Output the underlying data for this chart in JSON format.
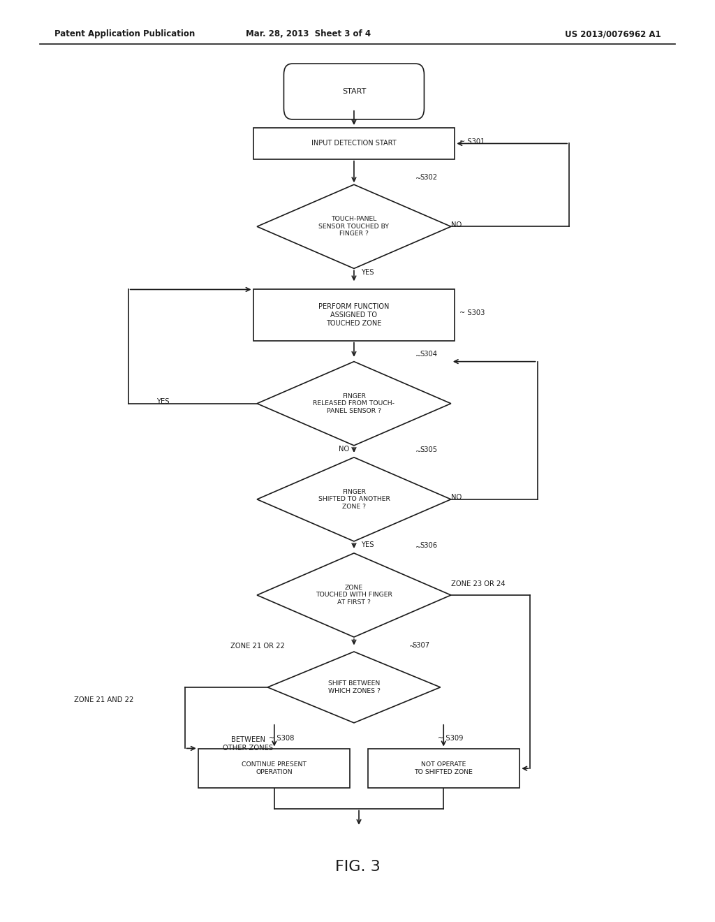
{
  "bg_color": "#ffffff",
  "header_left": "Patent Application Publication",
  "header_mid": "Mar. 28, 2013  Sheet 3 of 4",
  "header_right": "US 2013/0076962 A1",
  "fig_label": "FIG. 3",
  "line_color": "#1a1a1a",
  "text_color": "#1a1a1a",
  "font_size_node": 7.0,
  "font_size_label": 7.2,
  "font_size_header": 8.5,
  "font_size_fig": 16
}
